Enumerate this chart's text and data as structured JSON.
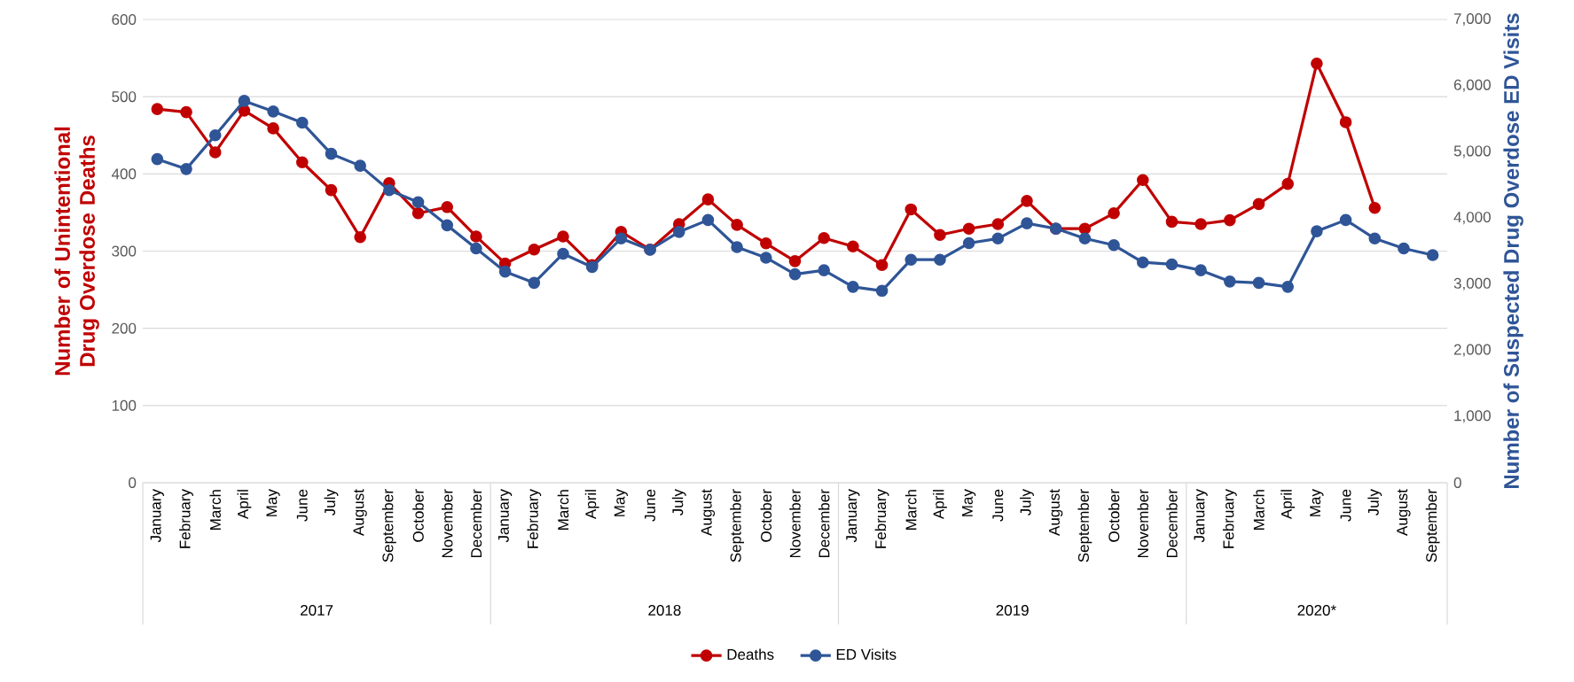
{
  "chart_data": {
    "type": "line",
    "categories": [
      "January",
      "February",
      "March",
      "April",
      "May",
      "June",
      "July",
      "August",
      "September",
      "October",
      "November",
      "December",
      "January",
      "February",
      "March",
      "April",
      "May",
      "June",
      "July",
      "August",
      "September",
      "October",
      "November",
      "December",
      "January",
      "February",
      "March",
      "April",
      "May",
      "June",
      "July",
      "August",
      "September",
      "October",
      "November",
      "December",
      "January",
      "February",
      "March",
      "April",
      "May",
      "June",
      "July",
      "August",
      "September"
    ],
    "series": [
      {
        "name": "Deaths",
        "color": "#c00000",
        "values": [
          484,
          480,
          428,
          482,
          459,
          415,
          379,
          318,
          388,
          349,
          357,
          319,
          284,
          302,
          319,
          282,
          325,
          302,
          335,
          367,
          334,
          310,
          287,
          317,
          306,
          282,
          354,
          321,
          329,
          335,
          365,
          329,
          329,
          349,
          392,
          338,
          335,
          340,
          361,
          387,
          543,
          467,
          356,
          null,
          null
        ]
      },
      {
        "name": "ED Visits",
        "color": "#2f5597",
        "axis": "y2",
        "values": [
          4890,
          4740,
          5250,
          5770,
          5610,
          5440,
          4970,
          4790,
          4420,
          4240,
          3890,
          3540,
          3190,
          3020,
          3460,
          3260,
          3690,
          3520,
          3790,
          3970,
          3560,
          3400,
          3150,
          3210,
          2960,
          2900,
          3370,
          3370,
          3620,
          3690,
          3920,
          3840,
          3690,
          3590,
          3330,
          3300,
          3210,
          3040,
          3020,
          2960,
          3800,
          3970,
          3690,
          3540,
          3440
        ]
      }
    ],
    "ylabel": "Number of Unintentional Drug Overdose Deaths",
    "y2label": "Number of Suspected Drug Overdose ED Visits",
    "ylim": [
      0,
      600
    ],
    "yticks": [
      0,
      100,
      200,
      300,
      400,
      500,
      600
    ],
    "y2lim": [
      0,
      7000
    ],
    "y2ticks": [
      {
        "value": 0,
        "label": "0"
      },
      {
        "value": 1000,
        "label": "1,000"
      },
      {
        "value": 2000,
        "label": "2,000"
      },
      {
        "value": 3000,
        "label": "3,000"
      },
      {
        "value": 4000,
        "label": "4,000"
      },
      {
        "value": 5000,
        "label": "5,000"
      },
      {
        "value": 6000,
        "label": "6,000"
      },
      {
        "value": 7000,
        "label": "7,000"
      }
    ],
    "annotations": [
      "2017",
      "2018",
      "2019",
      "2020*"
    ],
    "grid": "y",
    "legend": "bottom",
    "marker": "circle",
    "line_style": "solid"
  }
}
